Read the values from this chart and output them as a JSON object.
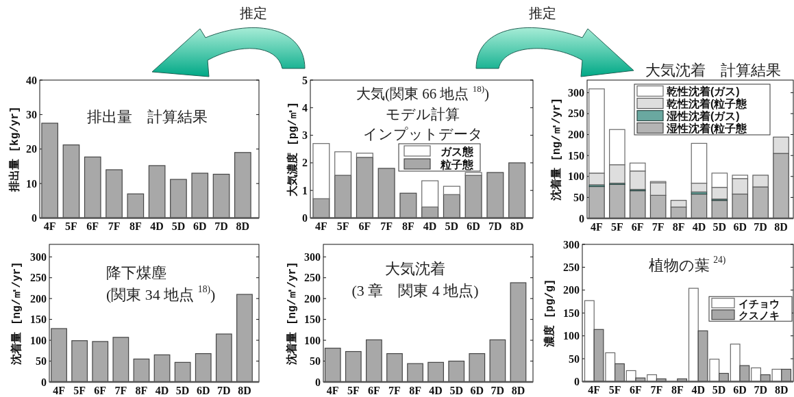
{
  "chart_data": [
    {
      "type": "bar",
      "title": "排出量　計算結果",
      "ylabel": "排出量 [kg/yr]",
      "categories": [
        "4F",
        "5F",
        "6F",
        "7F",
        "8F",
        "4D",
        "5D",
        "6D",
        "7D",
        "8D"
      ],
      "values": [
        27.5,
        21.2,
        17.7,
        14,
        7,
        15.2,
        11.2,
        13,
        12.7,
        19
      ],
      "color": "#a8a8a8",
      "ylim": [
        0,
        40
      ],
      "yticks": [
        0,
        10,
        20,
        30,
        40
      ]
    },
    {
      "type": "bar",
      "title": "大気(関東 66 地点 $^{18)}$)",
      "subtitle": "モデル計算インプットデータ",
      "ylabel": "大気濃度 [pg/㎥]",
      "categories": [
        "4F",
        "5F",
        "6F",
        "7F",
        "8F",
        "4D",
        "5D",
        "6D",
        "7D",
        "8D"
      ],
      "stacked": true,
      "series": [
        {
          "name": "粒子態",
          "color": "#a8a8a8",
          "values": [
            0.7,
            1.55,
            2.2,
            1.8,
            0.9,
            0.4,
            0.85,
            1.55,
            1.65,
            2.0
          ]
        },
        {
          "name": "ガス態",
          "color": "#ffffff",
          "values": [
            2.0,
            0.85,
            0.15,
            null,
            null,
            0.95,
            0.3,
            0.1,
            null,
            null
          ]
        }
      ],
      "ylim": [
        0,
        5
      ],
      "yticks": [
        0,
        1,
        2,
        3,
        4,
        5
      ],
      "legend": "right",
      "annotations": [
        "推定",
        "推定"
      ]
    },
    {
      "type": "bar",
      "title": "大気沈着　計算結果",
      "ylabel": "沈着量 [ng/㎡/yr]",
      "categories": [
        "4F",
        "5F",
        "6F",
        "7F",
        "8F",
        "4D",
        "5D",
        "6D",
        "7D",
        "8D"
      ],
      "stacked": true,
      "series": [
        {
          "name": "湿性沈着(粒子態",
          "color": "#b4b4b4",
          "values": [
            76,
            81,
            66,
            55,
            27,
            58,
            43,
            58,
            75,
            155
          ]
        },
        {
          "name": "湿性沈着(ガス)",
          "color": "#6aa8a0",
          "values": [
            4,
            3,
            3,
            null,
            null,
            5,
            3,
            null,
            null,
            null
          ]
        },
        {
          "name": "乾性沈着(粒子態",
          "color": "#dedede",
          "values": [
            28,
            44,
            44,
            30,
            16,
            21,
            28,
            37,
            28,
            39
          ]
        },
        {
          "name": "乾性沈着(ガス)",
          "color": "#ffffff",
          "values": [
            201,
            84,
            19,
            3,
            null,
            95,
            34,
            8,
            null,
            null
          ]
        }
      ],
      "ylim": [
        0,
        330
      ],
      "yticks": [
        0,
        50,
        100,
        150,
        200,
        250,
        300
      ],
      "legend": "top right"
    },
    {
      "type": "bar",
      "title": "降下煤塵",
      "subtitle": "(関東 34 地点 $^{18)}$)",
      "ylabel": "沈着量 [ng/㎡/yr]",
      "categories": [
        "4F",
        "5F",
        "6F",
        "7F",
        "8F",
        "4D",
        "5D",
        "6D",
        "7D",
        "8D"
      ],
      "values": [
        128,
        99,
        97,
        107,
        55,
        65,
        47,
        68,
        115,
        210
      ],
      "color": "#a8a8a8",
      "ylim": [
        0,
        330
      ],
      "yticks": [
        0,
        50,
        100,
        150,
        200,
        250,
        300
      ]
    },
    {
      "type": "bar",
      "title": "大気沈着",
      "subtitle": "(3 章　関東 4 地点)",
      "ylabel": "沈着量 [ng/㎡/yr]",
      "categories": [
        "4F",
        "5F",
        "6F",
        "7F",
        "8F",
        "4D",
        "5D",
        "6D",
        "7D",
        "8D"
      ],
      "values": [
        81,
        73,
        101,
        68,
        44,
        47,
        50,
        68,
        101,
        238
      ],
      "color": "#a8a8a8",
      "ylim": [
        0,
        330
      ],
      "yticks": [
        0,
        50,
        100,
        150,
        200,
        250,
        300
      ]
    },
    {
      "type": "bar",
      "title": "植物の葉 $^{24)}$",
      "ylabel": "濃度 [pg/g]",
      "categories": [
        "4F",
        "5F",
        "6F",
        "7F",
        "8F",
        "4D",
        "5D",
        "6D",
        "7D",
        "8D"
      ],
      "series": [
        {
          "name": "イチョウ",
          "color": "#ffffff",
          "values": [
            177,
            63,
            24,
            15,
            null,
            204,
            49,
            82,
            30,
            27
          ]
        },
        {
          "name": "クスノキ",
          "color": "#a8a8a8",
          "values": [
            114,
            39,
            8,
            6,
            6,
            111,
            18,
            35,
            15,
            27
          ]
        }
      ],
      "ylim": [
        0,
        300
      ],
      "yticks": [
        0,
        50,
        100,
        150,
        200,
        250,
        300
      ],
      "legend": "right"
    }
  ]
}
